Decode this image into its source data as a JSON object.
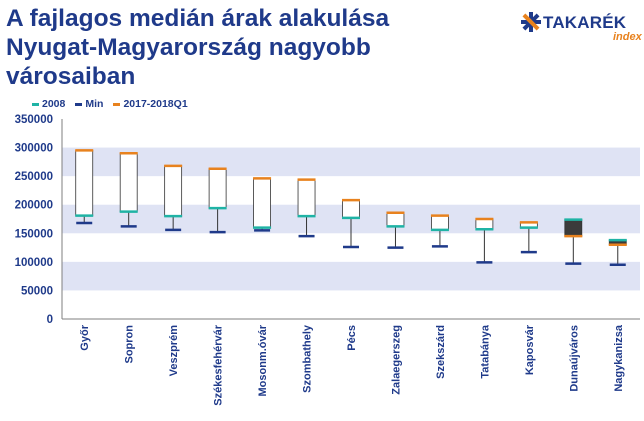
{
  "title": "A fajlagos medián árak alakulása Nyugat-Magyarország nagyobb városaiban",
  "logo": {
    "name": "TAKARÉK",
    "sub": "index"
  },
  "colors": {
    "title": "#1f3a8a",
    "band": "#dfe3f4",
    "line2008": "#1fb3a5",
    "lineMin": "#1f3a8a",
    "lineLatest": "#e8821e",
    "boxUp": "#ffffff",
    "boxDown": "#3b3b3b"
  },
  "chart_data": {
    "type": "bar",
    "subtype": "high-low-open-close",
    "categories": [
      "Győr",
      "Sopron",
      "Veszprém",
      "Székesfehérvár",
      "Mosonm.óvár",
      "Szombathely",
      "Pécs",
      "Zalaegerszeg",
      "Szekszárd",
      "Tatabánya",
      "Kaposvár",
      "Dunaújváros",
      "Nagykanizsa"
    ],
    "series": [
      {
        "name": "2008",
        "values": [
          181000,
          188000,
          180000,
          194000,
          160000,
          180000,
          177000,
          162000,
          156000,
          157000,
          160000,
          174000,
          138000
        ]
      },
      {
        "name": "Min",
        "values": [
          168000,
          162000,
          156000,
          152000,
          155000,
          145000,
          126000,
          125000,
          127000,
          99000,
          117000,
          97000,
          95000
        ]
      },
      {
        "name": "2017-2018Q1",
        "values": [
          295000,
          290000,
          268000,
          263000,
          246000,
          244000,
          208000,
          186000,
          181000,
          175000,
          169000,
          145000,
          130000
        ]
      }
    ],
    "ylim": [
      0,
      350000
    ],
    "yticks": [
      "0",
      "50000",
      "100000",
      "150000",
      "200000",
      "250000",
      "300000",
      "350000"
    ],
    "grid": "alternating bands",
    "legend": "top-left"
  }
}
